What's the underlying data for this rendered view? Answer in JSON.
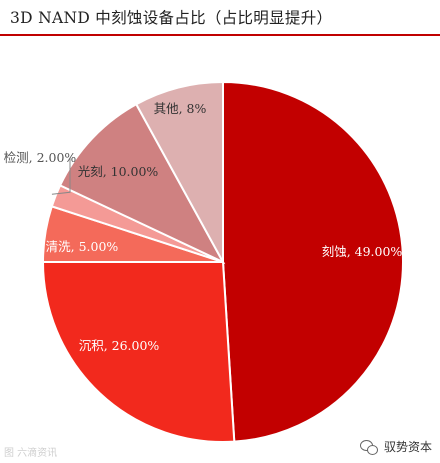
{
  "title": "3D NAND 中刻蚀设备占比（占比明显提升）",
  "watermark_left": "图 六滴资讯",
  "watermark_right": "驭势资本",
  "watermark_icon": "wechat-icon",
  "colors": {
    "title_rule": "#c00000"
  },
  "chart_data": {
    "type": "pie",
    "title": "3D NAND 中刻蚀设备占比（占比明显提升）",
    "unit": "%",
    "start_angle": "12 o'clock",
    "direction": "clockwise",
    "slices": [
      {
        "label": "刻蚀",
        "value": 49.0,
        "display": "刻蚀, 49.00%",
        "color": "#c20000"
      },
      {
        "label": "沉积",
        "value": 26.0,
        "display": "沉积, 26.00%",
        "color": "#f2291d"
      },
      {
        "label": "清洗",
        "value": 5.0,
        "display": "清洗, 5.00%",
        "color": "#f46a5a"
      },
      {
        "label": "检测",
        "value": 2.0,
        "display": "检测, 2.00%",
        "color": "#f49a96"
      },
      {
        "label": "光刻",
        "value": 10.0,
        "display": "光刻, 10.00%",
        "color": "#cf8181"
      },
      {
        "label": "其他",
        "value": 8.0,
        "display": "其他, 8%",
        "color": "#ddb0b0"
      }
    ]
  }
}
